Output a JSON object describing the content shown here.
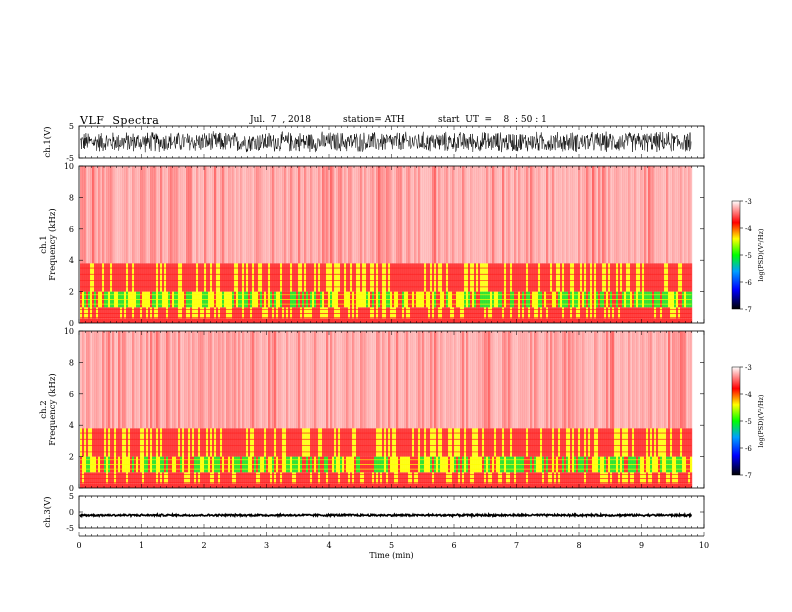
{
  "header": {
    "title": "VLF  Spectra",
    "date": "Jul.  7  , 2018",
    "station": "station= ATH",
    "start": "start  UT  =    8  : 50 : 1"
  },
  "colors": {
    "spectrum_red": "#ff2020",
    "spectrum_yellow": "#ffff00",
    "spectrum_green": "#20e020",
    "waveform": "#000000"
  },
  "chart_data": [
    {
      "type": "line",
      "name": "ch1-waveform",
      "ylabel": "ch.1(V)",
      "ylim": [
        -5,
        5
      ],
      "yticks": [
        "5",
        "-5"
      ],
      "x": [
        0,
        9.8
      ],
      "amplitude_envelope": [
        -3.5,
        3.5
      ],
      "trace_color": "#000000"
    },
    {
      "type": "heatmap",
      "name": "ch1-spectrogram",
      "ylabel": "ch.1\nFrequency  (kHz)",
      "ylim": [
        0,
        10
      ],
      "yticks": [
        "0",
        "2",
        "4",
        "6",
        "8",
        "10"
      ],
      "xlim": [
        0,
        10
      ],
      "data_end_min": 9.8,
      "bands_khz": [
        {
          "from": 0,
          "to": 0.3,
          "level": "red"
        },
        {
          "from": 0.3,
          "to": 1.0,
          "level": "red-yellow"
        },
        {
          "from": 1.0,
          "to": 2.0,
          "level": "green-yellow"
        },
        {
          "from": 2.0,
          "to": 3.8,
          "level": "red-yellow"
        },
        {
          "from": 3.8,
          "to": 10,
          "level": "sparse-red"
        }
      ],
      "colorbar": {
        "label": "log(PSD)(V²/Hz)",
        "ticks": [
          "-3",
          "-4",
          "-5",
          "-6",
          "-7"
        ],
        "range": [
          -7,
          -3
        ]
      }
    },
    {
      "type": "heatmap",
      "name": "ch2-spectrogram",
      "ylabel": "ch.2\nFrequency  (kHz)",
      "ylim": [
        0,
        10
      ],
      "yticks": [
        "0",
        "2",
        "4",
        "6",
        "8",
        "10"
      ],
      "xlim": [
        0,
        10
      ],
      "data_end_min": 9.8,
      "bands_khz": [
        {
          "from": 0,
          "to": 0.3,
          "level": "red"
        },
        {
          "from": 0.3,
          "to": 1.0,
          "level": "red-yellow"
        },
        {
          "from": 1.0,
          "to": 2.0,
          "level": "green-yellow"
        },
        {
          "from": 2.0,
          "to": 3.8,
          "level": "red-yellow"
        },
        {
          "from": 3.8,
          "to": 10,
          "level": "sparse-red"
        }
      ],
      "colorbar": {
        "label": "log(PSD)(V²/Hz)",
        "ticks": [
          "-3",
          "-4",
          "-5",
          "-6",
          "-7"
        ],
        "range": [
          -7,
          -3
        ]
      }
    },
    {
      "type": "line",
      "name": "ch3-waveform",
      "ylabel": "ch.3(V)",
      "ylim": [
        -5,
        5
      ],
      "yticks": [
        "5",
        "0",
        "-5"
      ],
      "x": [
        0,
        9.8
      ],
      "level": -1.0,
      "amplitude_envelope": [
        -0.35,
        0.35
      ],
      "trace_color": "#000000"
    }
  ],
  "xaxis": {
    "label": "Time  (min)",
    "ticks": [
      "0",
      "1",
      "2",
      "3",
      "4",
      "5",
      "6",
      "7",
      "8",
      "9",
      "10"
    ],
    "xlim": [
      0,
      10
    ]
  }
}
